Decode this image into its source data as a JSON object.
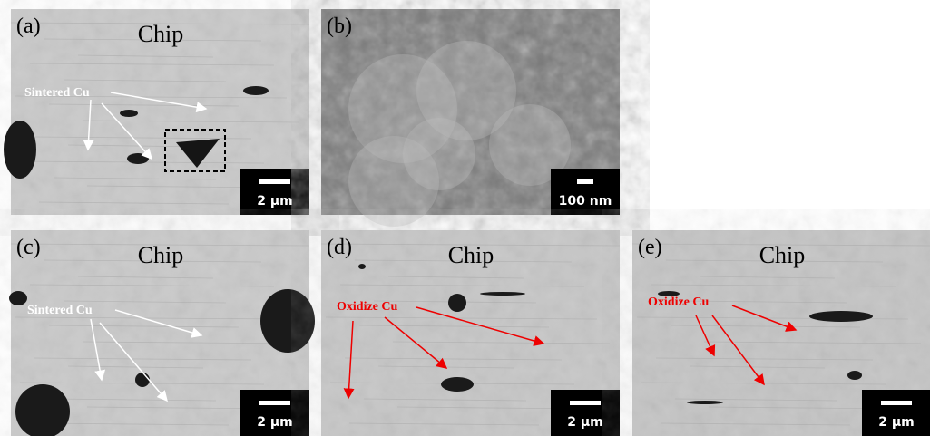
{
  "panels": [
    {
      "label": "(a)",
      "title": "Chip",
      "annotation": "Sintered Cu",
      "scale_bar": "2 µm"
    },
    {
      "label": "(b)",
      "scale_bar": "100 nm"
    },
    {
      "label": "(c)",
      "title": "Chip",
      "annotation": "Sintered Cu",
      "scale_bar": "2 µm"
    },
    {
      "label": "(d)",
      "title": "Chip",
      "annotation": "Oxidize Cu",
      "scale_bar": "2 µm"
    },
    {
      "label": "(e)",
      "title": "Chip",
      "annotation": "Oxidize Cu",
      "scale_bar": "2 µm"
    }
  ]
}
